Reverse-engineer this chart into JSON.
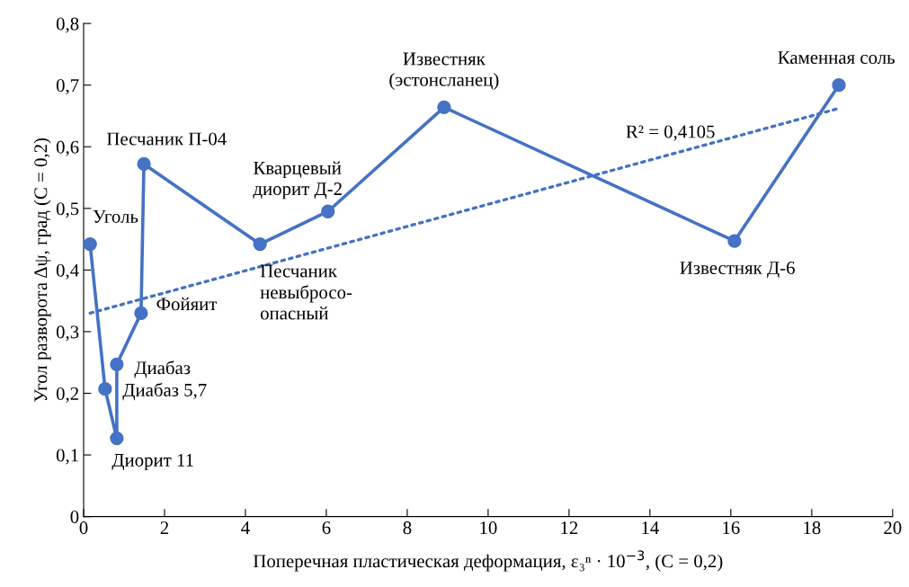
{
  "chart_data": {
    "type": "line",
    "xlabel": "Поперечная пластическая деформация, ε₃ⁿ · 10$^{−3}$, (C = 0,2)",
    "ylabel": "Угол разворота Δψ, град (C = 0,2)",
    "series": [
      {
        "color": "#4472c4",
        "marker": "circle",
        "line_style": "solid",
        "x": [
          0.16,
          0.53,
          0.82,
          0.82,
          1.42,
          1.49,
          4.36,
          6.04,
          8.91,
          16.09,
          18.67
        ],
        "values": [
          0.442,
          0.207,
          0.127,
          0.247,
          0.33,
          0.572,
          0.442,
          0.495,
          0.664,
          0.447,
          0.7
        ]
      },
      {
        "color": "#4472c4",
        "marker": "none",
        "line_style": "dotted",
        "x": [
          0.16,
          18.6
        ],
        "values": [
          0.33,
          0.661
        ]
      }
    ],
    "xlim": [
      0,
      20
    ],
    "xticks": [
      0,
      2,
      4,
      6,
      8,
      10,
      12,
      14,
      16,
      18,
      20
    ],
    "ylim": [
      0,
      0.8
    ],
    "yticks": [
      0,
      {
        "value": 0.1,
        "label": "0,1"
      },
      {
        "value": 0.2,
        "label": "0,2"
      },
      {
        "value": 0.3,
        "label": "0,3"
      },
      {
        "value": 0.4,
        "label": "0,4"
      },
      {
        "value": 0.5,
        "label": "0,5"
      },
      {
        "value": 0.6,
        "label": "0,6"
      },
      {
        "value": 0.7,
        "label": "0,7"
      },
      {
        "value": 0.8,
        "label": "0,8"
      }
    ],
    "grid": false,
    "legend": false,
    "annotations": [
      {
        "text": "Уголь",
        "x": 0.16,
        "y": 0.442
      },
      {
        "text": "Диабаз 5,7",
        "x": 0.53,
        "y": 0.207
      },
      {
        "text": "Диорит 11",
        "x": 0.82,
        "y": 0.127
      },
      {
        "text": "Диабаз",
        "x": 0.82,
        "y": 0.247
      },
      {
        "text": "Фойяит",
        "x": 1.42,
        "y": 0.33
      },
      {
        "text": "Песчаник П-04",
        "x": 1.49,
        "y": 0.572
      },
      {
        "text": "Песчаник\nневыбросо-\nопасный",
        "x": 4.36,
        "y": 0.442
      },
      {
        "text": "Кварцевый\nдиорит Д-2",
        "x": 6.04,
        "y": 0.495
      },
      {
        "text": "Известняк\n(эстонсланец)",
        "x": 8.91,
        "y": 0.664
      },
      {
        "text": "Известняк Д-6",
        "x": 16.09,
        "y": 0.447
      },
      {
        "text": "Каменная соль",
        "x": 18.67,
        "y": 0.7
      },
      "R² = 0,4105"
    ]
  }
}
